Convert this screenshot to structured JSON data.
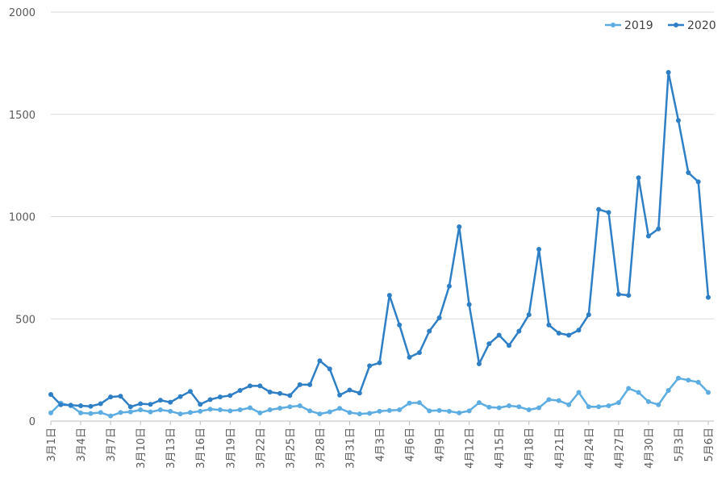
{
  "chart_data": {
    "type": "line",
    "title": "",
    "xlabel": "",
    "ylabel": "",
    "ylim": [
      0,
      2000
    ],
    "yticks": [
      0,
      500,
      1000,
      1500,
      2000
    ],
    "grid": true,
    "legend_position": "top-right",
    "x": [
      "3月1日",
      "3月2日",
      "3月3日",
      "3月4日",
      "3月5日",
      "3月6日",
      "3月7日",
      "3月8日",
      "3月9日",
      "3月10日",
      "3月11日",
      "3月12日",
      "3月13日",
      "3月14日",
      "3月15日",
      "3月16日",
      "3月17日",
      "3月18日",
      "3月19日",
      "3月20日",
      "3月21日",
      "3月22日",
      "3月23日",
      "3月24日",
      "3月25日",
      "3月26日",
      "3月27日",
      "3月28日",
      "3月29日",
      "3月30日",
      "3月31日",
      "4月1日",
      "4月2日",
      "4月3日",
      "4月4日",
      "4月5日",
      "4月6日",
      "4月7日",
      "4月8日",
      "4月9日",
      "4月10日",
      "4月11日",
      "4月12日",
      "4月13日",
      "4月14日",
      "4月15日",
      "4月16日",
      "4月17日",
      "4月18日",
      "4月19日",
      "4月20日",
      "4月21日",
      "4月22日",
      "4月23日",
      "4月24日",
      "4月25日",
      "4月26日",
      "4月27日",
      "4月28日",
      "4月29日",
      "4月30日",
      "5月1日",
      "5月2日",
      "5月3日",
      "5月4日",
      "5月5日",
      "5月6日"
    ],
    "x_tick_labels": [
      "3月1日",
      "3月4日",
      "3月7日",
      "3月10日",
      "3月13日",
      "3月16日",
      "3月19日",
      "3月22日",
      "3月25日",
      "3月28日",
      "3月31日",
      "4月3日",
      "4月6日",
      "4月9日",
      "4月12日",
      "4月15日",
      "4月18日",
      "4月21日",
      "4月24日",
      "4月27日",
      "4月30日",
      "5月3日",
      "5月6日"
    ],
    "series": [
      {
        "name": "2019",
        "color": "#5dade2",
        "values": [
          40,
          88,
          75,
          40,
          37,
          42,
          25,
          42,
          45,
          55,
          45,
          55,
          48,
          35,
          42,
          48,
          58,
          55,
          50,
          55,
          65,
          40,
          55,
          63,
          70,
          75,
          50,
          35,
          45,
          62,
          42,
          35,
          38,
          48,
          52,
          55,
          88,
          90,
          50,
          52,
          48,
          40,
          50,
          90,
          68,
          65,
          75,
          70,
          55,
          65,
          105,
          100,
          80,
          140,
          70,
          70,
          75,
          90,
          160,
          140,
          95,
          80,
          150,
          210,
          200,
          190,
          140
        ]
      },
      {
        "name": "2020",
        "color": "#2e7fc6",
        "values": [
          130,
          80,
          78,
          75,
          72,
          85,
          118,
          122,
          70,
          85,
          82,
          102,
          92,
          120,
          145,
          82,
          105,
          118,
          125,
          150,
          172,
          172,
          142,
          135,
          125,
          178,
          178,
          295,
          255,
          127,
          152,
          137,
          270,
          285,
          615,
          470,
          312,
          335,
          440,
          505,
          660,
          950,
          570,
          280,
          378,
          420,
          370,
          440,
          520,
          840,
          470,
          430,
          420,
          445,
          520,
          1035,
          1020,
          620,
          615,
          1190,
          905,
          940,
          1705,
          1470,
          1215,
          1170,
          605
        ]
      }
    ]
  }
}
